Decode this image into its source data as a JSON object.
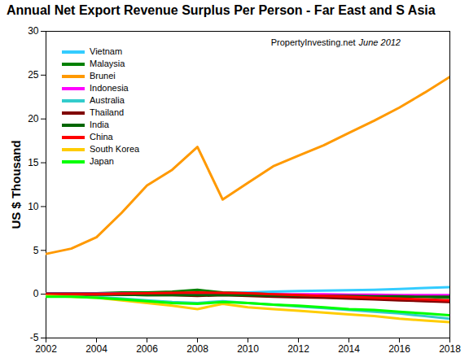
{
  "chart_data": {
    "type": "line",
    "title": "Annual Net Export Revenue Surplus Per Person -  Far East and S Asia",
    "annotations": [
      "PropertyInvesting.net",
      "June 2012"
    ],
    "y_label": "US $ Thousand",
    "x": [
      2002,
      2003,
      2004,
      2005,
      2006,
      2007,
      2008,
      2009,
      2010,
      2011,
      2012,
      2013,
      2014,
      2015,
      2016,
      2017,
      2018
    ],
    "xlim": [
      2002,
      2018
    ],
    "xticks": [
      2002,
      2004,
      2006,
      2008,
      2010,
      2012,
      2014,
      2016,
      2018
    ],
    "ylim": [
      -5,
      30
    ],
    "yticks": [
      -5,
      0,
      5,
      10,
      15,
      20,
      25,
      30
    ],
    "grid": false,
    "legend": "top-left",
    "series": [
      {
        "name": "Vietnam",
        "color": "#33ccff",
        "values": [
          0,
          0,
          0,
          0,
          0,
          0,
          0,
          0.1,
          0.2,
          0.3,
          0.35,
          0.4,
          0.45,
          0.5,
          0.6,
          0.7,
          0.8
        ]
      },
      {
        "name": "Malaysia",
        "color": "#008000",
        "values": [
          0.1,
          0.1,
          0.1,
          0.2,
          0.2,
          0.3,
          0.5,
          0.2,
          0.1,
          0,
          -0.1,
          -0.1,
          -0.2,
          -0.2,
          -0.3,
          -0.3,
          -0.4
        ]
      },
      {
        "name": "Brunei",
        "color": "#ff9900",
        "values": [
          4.6,
          5.2,
          6.5,
          9.3,
          12.4,
          14.2,
          16.8,
          10.8,
          12.7,
          14.6,
          15.8,
          17.0,
          18.4,
          19.8,
          21.3,
          23.0,
          24.8
        ]
      },
      {
        "name": "Indonesia",
        "color": "#ff00ff",
        "values": [
          0.05,
          0.05,
          0.05,
          0.05,
          0.05,
          0.05,
          0.1,
          0.05,
          0.05,
          0,
          0,
          0,
          -0.05,
          -0.05,
          -0.1,
          -0.1,
          -0.1
        ]
      },
      {
        "name": "Australia",
        "color": "#33cccc",
        "values": [
          0,
          -0.1,
          -0.3,
          -0.5,
          -0.7,
          -0.9,
          -1.0,
          -0.8,
          -1.0,
          -1.2,
          -1.4,
          -1.6,
          -1.8,
          -2.0,
          -2.2,
          -2.5,
          -2.8
        ]
      },
      {
        "name": "Thailand",
        "color": "#800000",
        "values": [
          0,
          0,
          0,
          -0.05,
          -0.1,
          -0.1,
          -0.2,
          -0.1,
          -0.2,
          -0.3,
          -0.35,
          -0.4,
          -0.5,
          -0.6,
          -0.7,
          -0.8,
          -0.9
        ]
      },
      {
        "name": "India",
        "color": "#006600",
        "values": [
          0,
          0,
          -0.05,
          -0.05,
          -0.1,
          -0.1,
          -0.1,
          -0.1,
          -0.1,
          -0.15,
          -0.15,
          -0.2,
          -0.2,
          -0.25,
          -0.25,
          -0.3,
          -0.3
        ]
      },
      {
        "name": "China",
        "color": "#ff0000",
        "values": [
          0,
          0,
          0,
          0.05,
          0.1,
          0.15,
          0.2,
          0.15,
          0.1,
          0,
          -0.1,
          -0.2,
          -0.3,
          -0.4,
          -0.5,
          -0.6,
          -0.7
        ]
      },
      {
        "name": "South Korea",
        "color": "#ffcc00",
        "values": [
          -0.2,
          -0.3,
          -0.4,
          -0.7,
          -1.0,
          -1.3,
          -1.7,
          -1.1,
          -1.5,
          -1.7,
          -1.9,
          -2.1,
          -2.3,
          -2.5,
          -2.8,
          -3.0,
          -3.2
        ]
      },
      {
        "name": "Japan",
        "color": "#00ff00",
        "values": [
          -0.3,
          -0.3,
          -0.4,
          -0.6,
          -0.8,
          -1.0,
          -1.1,
          -0.9,
          -1.0,
          -1.2,
          -1.3,
          -1.5,
          -1.7,
          -1.8,
          -2.0,
          -2.2,
          -2.4
        ]
      }
    ]
  }
}
